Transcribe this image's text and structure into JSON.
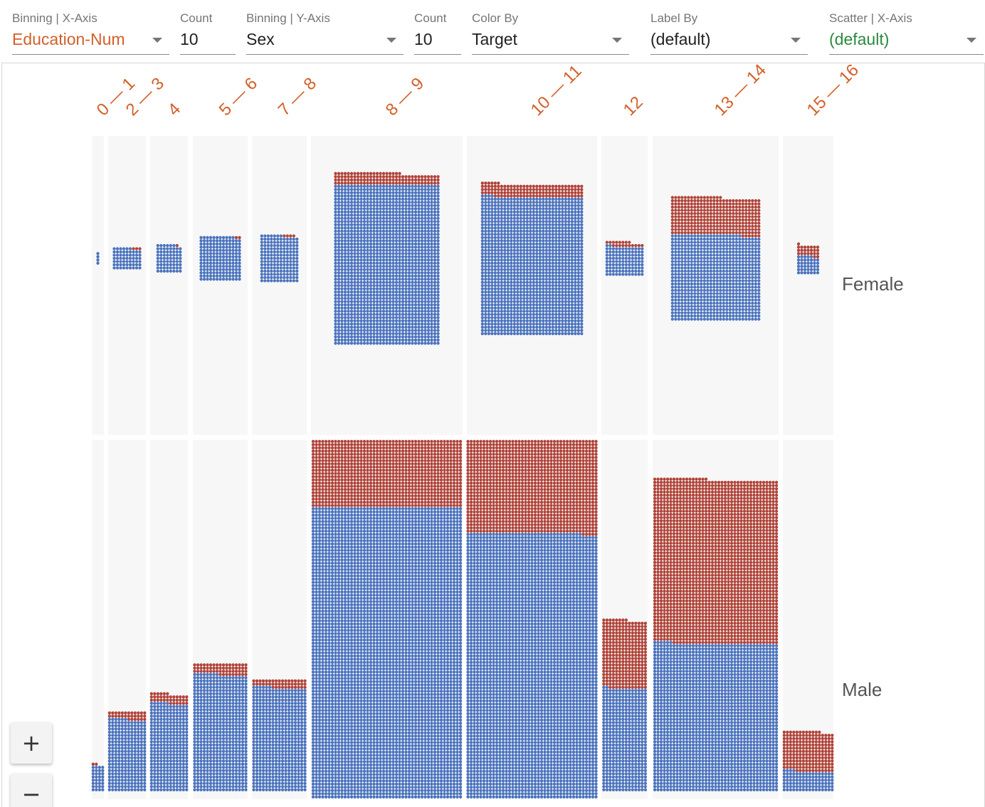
{
  "controls": {
    "binning_x": {
      "label": "Binning | X-Axis",
      "value": "Education-Num"
    },
    "count_x": {
      "label": "Count",
      "value": "10"
    },
    "binning_y": {
      "label": "Binning | Y-Axis",
      "value": "Sex"
    },
    "count_y": {
      "label": "Count",
      "value": "10"
    },
    "color_by": {
      "label": "Color By",
      "value": "Target"
    },
    "label_by": {
      "label": "Label By",
      "value": "(default)"
    },
    "scatter_x": {
      "label": "Scatter | X-Axis",
      "value": "(default)"
    }
  },
  "colors": {
    "accent": "#d3602a",
    "scatter_green": "#2a8a3e",
    "class_blue": "#4a72bd",
    "class_red": "#b04238",
    "cell_bg": "#f7f7f7"
  },
  "zoom": {
    "in": "+",
    "out": "−"
  },
  "chart_data": {
    "type": "facets-dive",
    "x_bins": [
      "0 — 1",
      "2 — 3",
      "4",
      "5 — 6",
      "7 — 8",
      "8 — 9",
      "10 — 11",
      "12",
      "13 — 14",
      "15 — 16"
    ],
    "y_bins": [
      "Female",
      "Male"
    ],
    "series": [
      {
        "name": "Female",
        "blue": [
          4,
          60,
          70,
          180,
          175,
          1650,
          1380,
          110,
          750,
          40
        ],
        "red": [
          0,
          3,
          1,
          2,
          4,
          120,
          130,
          18,
          330,
          24
        ]
      },
      {
        "name": "Male",
        "blue": [
          32,
          270,
          330,
          620,
          550,
          6500,
          3700,
          450,
          1800,
          100
        ],
        "red": [
          2,
          30,
          36,
          60,
          45,
          1500,
          1300,
          300,
          2000,
          200
        ]
      }
    ]
  }
}
